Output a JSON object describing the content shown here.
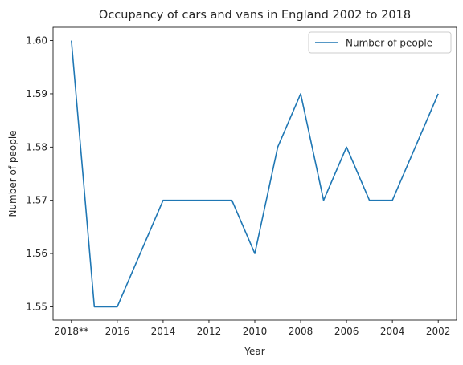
{
  "chart_data": {
    "type": "line",
    "title": "Occupancy of cars and vans in England 2002 to 2018",
    "xlabel": "Year",
    "ylabel": "Number of people",
    "categories": [
      "2018**",
      "2017",
      "2016",
      "2015",
      "2014",
      "2013",
      "2012",
      "2011",
      "2010",
      "2009",
      "2008",
      "2007",
      "2006",
      "2005",
      "2004",
      "2003",
      "2002"
    ],
    "x_tick_labels": [
      "2018**",
      "2016",
      "2014",
      "2012",
      "2010",
      "2008",
      "2006",
      "2004",
      "2002"
    ],
    "x_tick_indices": [
      0,
      2,
      4,
      6,
      8,
      10,
      12,
      14,
      16
    ],
    "series": [
      {
        "name": "Number of people",
        "color": "#1f77b4",
        "values": [
          1.6,
          1.55,
          1.55,
          1.56,
          1.57,
          1.57,
          1.57,
          1.57,
          1.56,
          1.58,
          1.59,
          1.57,
          1.58,
          1.57,
          1.57,
          1.58,
          1.59
        ]
      }
    ],
    "ylim": [
      1.5475,
      1.6025
    ],
    "y_ticks": [
      1.55,
      1.56,
      1.57,
      1.58,
      1.59,
      1.6
    ],
    "y_tick_labels": [
      "1.55",
      "1.56",
      "1.57",
      "1.58",
      "1.59",
      "1.60"
    ],
    "grid": false,
    "legend_position": "top-right"
  }
}
